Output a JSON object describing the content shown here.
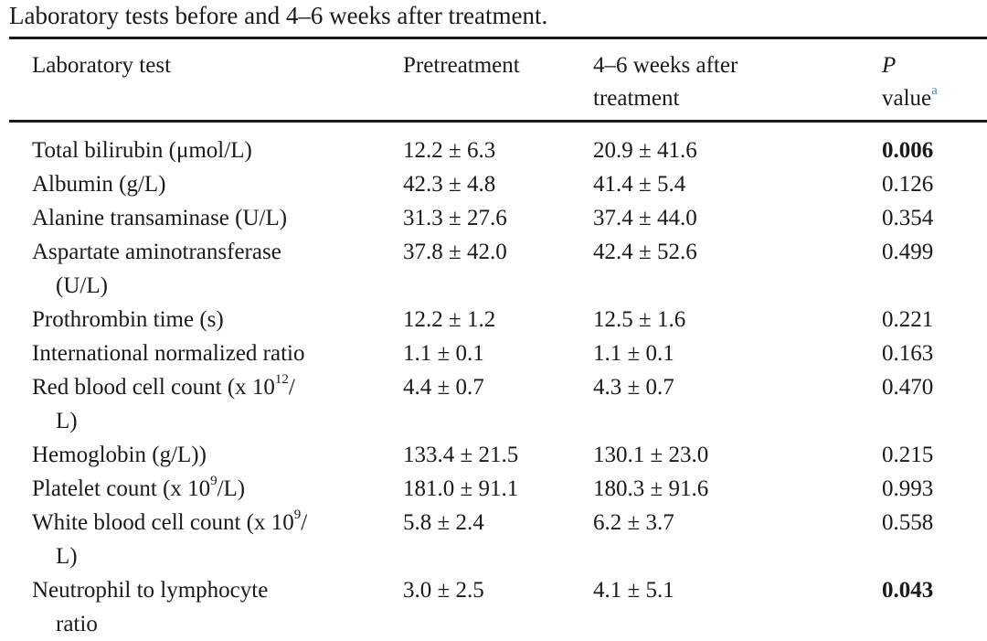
{
  "caption": "Laboratory tests before and 4–6 weeks after treatment.",
  "headers": {
    "test": "Laboratory test",
    "pre": "Pretreatment",
    "post_line1": "4–6 weeks after",
    "post_line2": "treatment",
    "p_line1": "P",
    "p_line2": "value",
    "p_note": "a"
  },
  "rows": [
    {
      "line1": "Total bilirubin (μmol/L)",
      "line2": "",
      "pre": "12.2 ± 6.3",
      "post": "20.9 ± 41.6",
      "p": "0.006",
      "bold": true
    },
    {
      "line1": "Albumin (g/L)",
      "line2": "",
      "pre": "42.3 ± 4.8",
      "post": "41.4 ± 5.4",
      "p": "0.126",
      "bold": false
    },
    {
      "line1": "Alanine transaminase (U/L)",
      "line2": "",
      "pre": "31.3 ± 27.6",
      "post": "37.4 ± 44.0",
      "p": "0.354",
      "bold": false
    },
    {
      "line1": "Aspartate aminotransferase",
      "line2": "(U/L)",
      "pre": "37.8 ± 42.0",
      "post": "42.4 ± 52.6",
      "p": "0.499",
      "bold": false
    },
    {
      "line1": "Prothrombin time (s)",
      "line2": "",
      "pre": "12.2 ± 1.2",
      "post": "12.5 ± 1.6",
      "p": "0.221",
      "bold": false
    },
    {
      "line1": "International normalized ratio",
      "line2": "",
      "pre": "1.1 ± 0.1",
      "post": "1.1 ± 0.1",
      "p": "0.163",
      "bold": false
    },
    {
      "line1": "Red blood cell count (x 10",
      "sup": "12",
      "line1_tail": "/",
      "line2": "L)",
      "pre": "4.4 ± 0.7",
      "post": "4.3 ± 0.7",
      "p": "0.470",
      "bold": false
    },
    {
      "line1": "Hemoglobin (g/L))",
      "line2": "",
      "pre": "133.4 ± 21.5",
      "post": "130.1 ± 23.0",
      "p": "0.215",
      "bold": false
    },
    {
      "line1": "Platelet count (x 10",
      "sup": "9",
      "line1_tail": "/L)",
      "line2": "",
      "pre": "181.0 ± 91.1",
      "post": "180.3 ± 91.6",
      "p": "0.993",
      "bold": false
    },
    {
      "line1": "White blood cell count (x 10",
      "sup": "9",
      "line1_tail": "/",
      "line2": "L)",
      "pre": "5.8 ± 2.4",
      "post": "6.2 ± 3.7",
      "p": "0.558",
      "bold": false
    },
    {
      "line1": "Neutrophil to lymphocyte",
      "line2": "ratio",
      "pre": "3.0 ± 2.5",
      "post": "4.1 ± 5.1",
      "p": "0.043",
      "bold": true
    }
  ]
}
